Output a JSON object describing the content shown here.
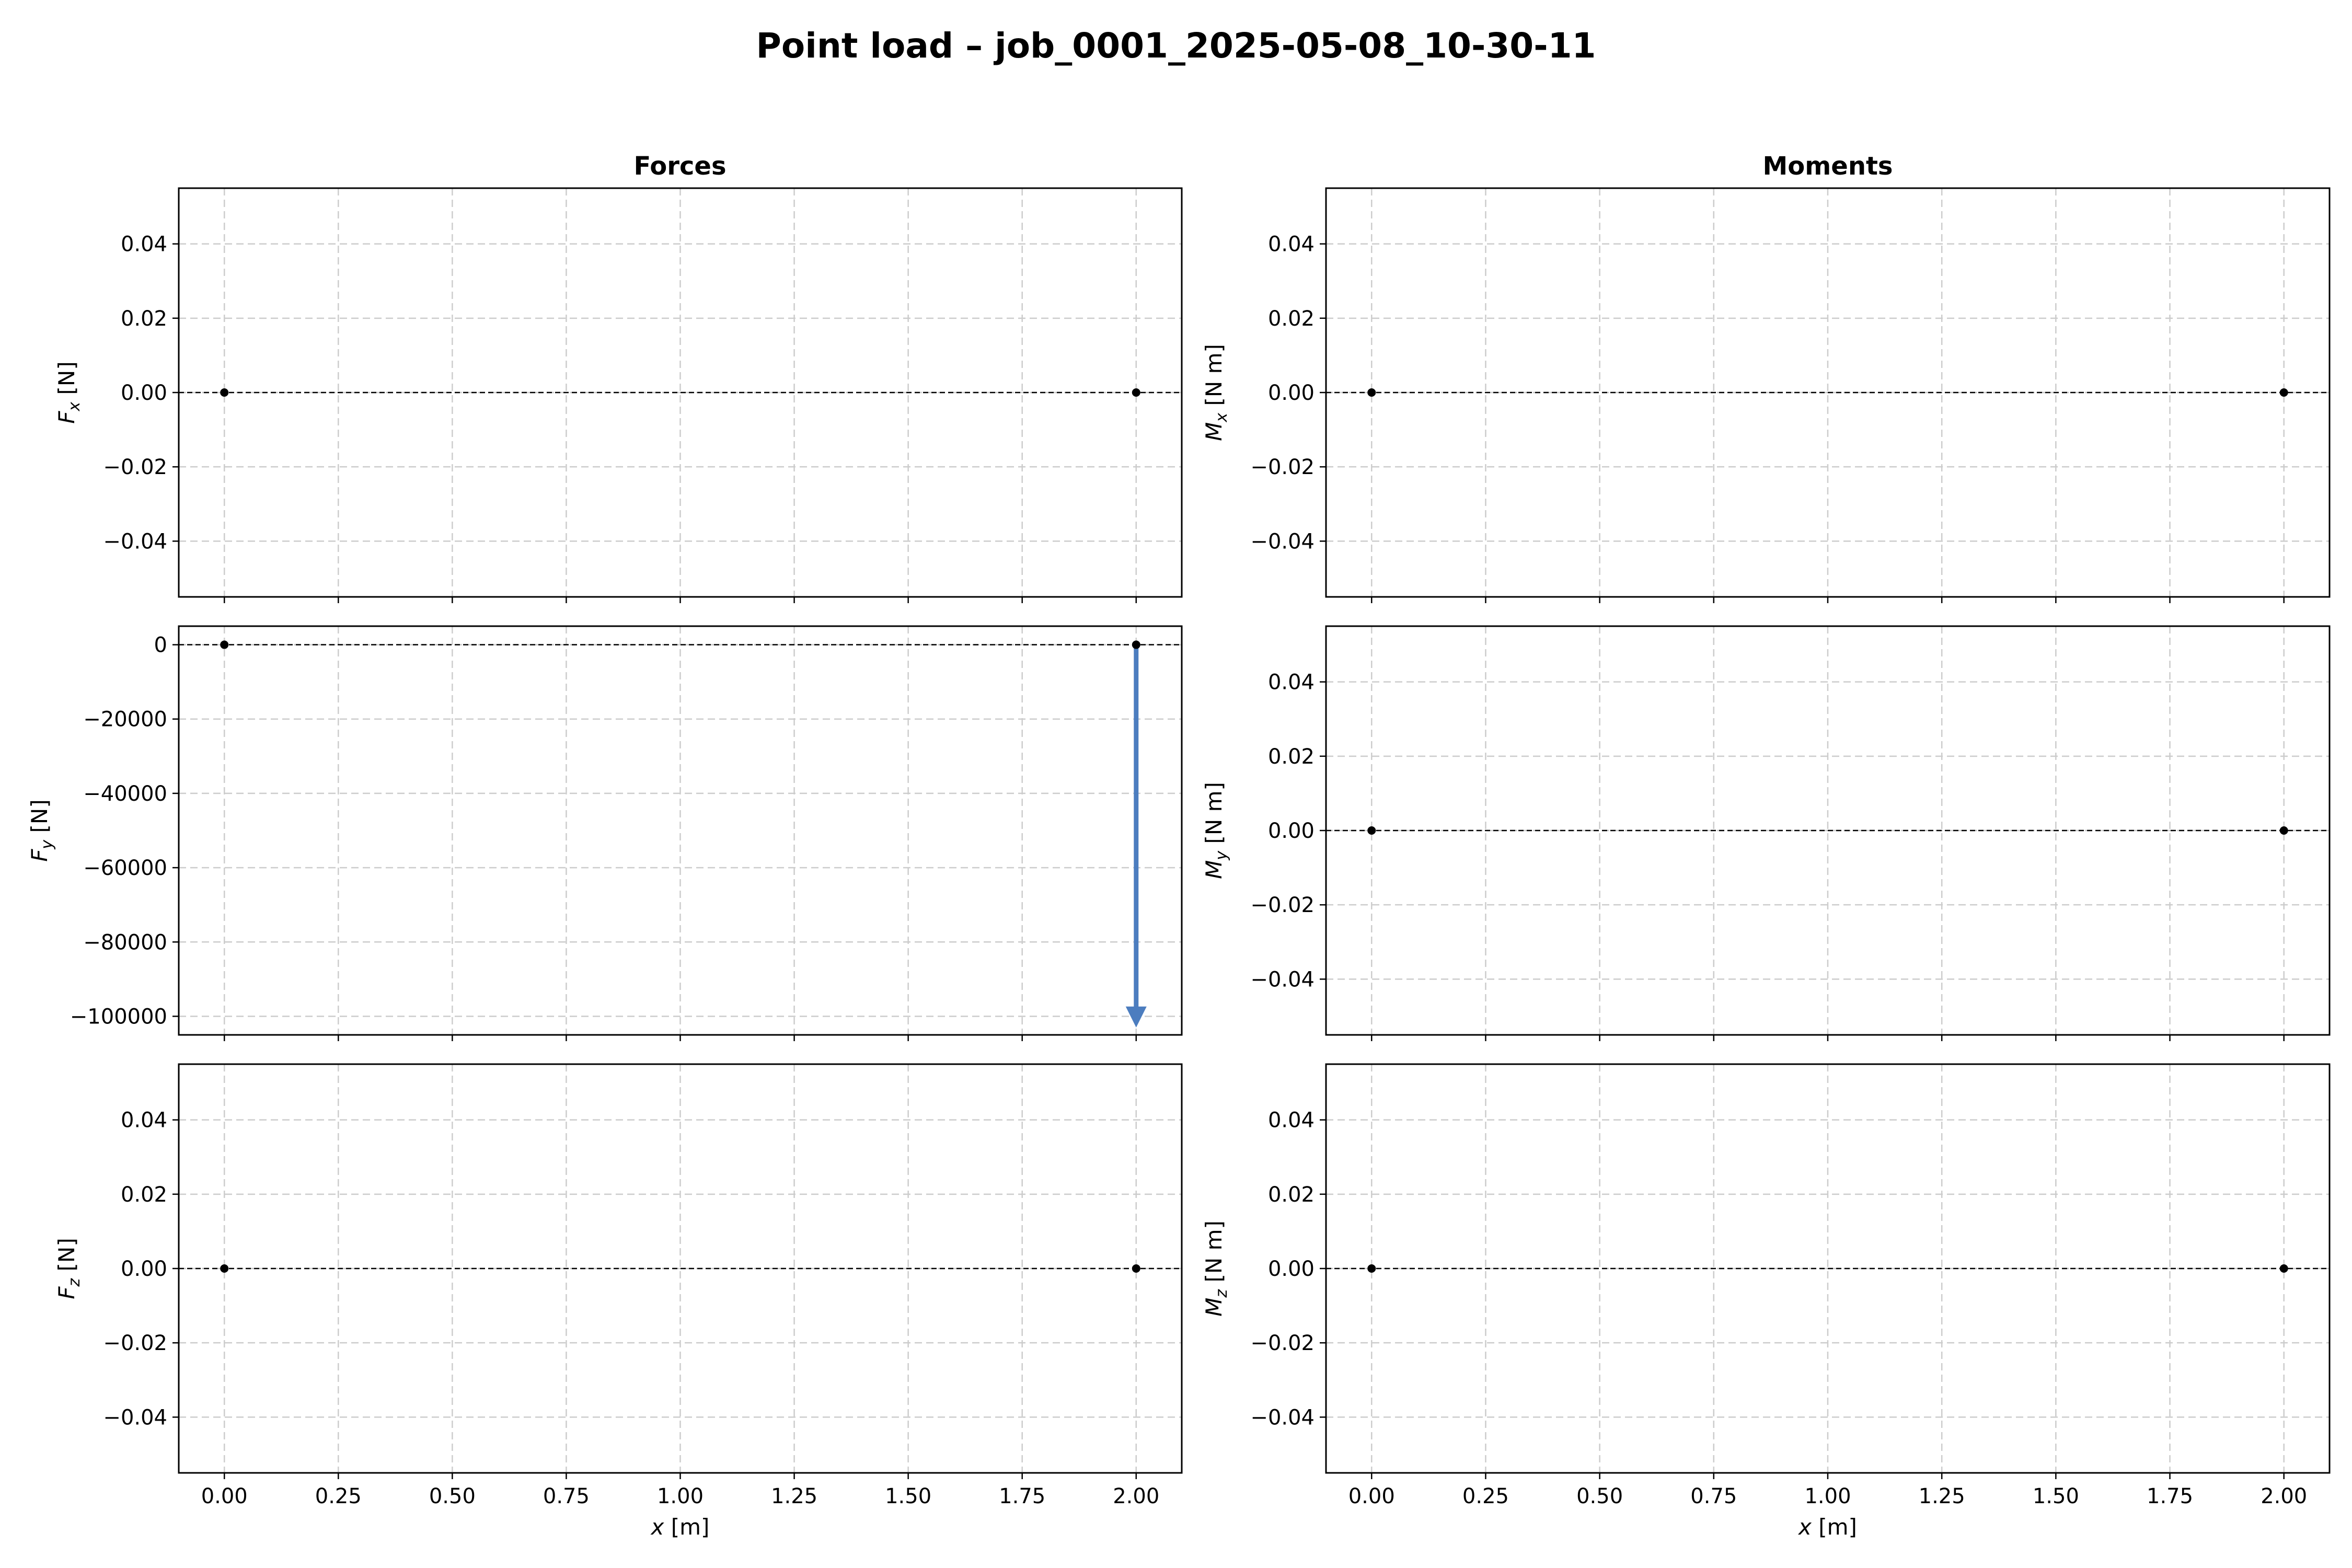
{
  "figure_title": "Point load – job_0001_2025-05-08_10-30-11",
  "colors": {
    "arrow": "#4c7dbf",
    "grid": "#cccccc",
    "zero_line": "#000000",
    "point": "#000000"
  },
  "chart_data": [
    {
      "type": "scatter",
      "column_title": "Forces",
      "ylabel": {
        "var": "F",
        "sub": "x",
        "unit": "[N]"
      },
      "xlim": [
        -0.1,
        2.1
      ],
      "ylim": [
        -0.055,
        0.055
      ],
      "xticks": [
        0,
        0.25,
        0.5,
        0.75,
        1.0,
        1.25,
        1.5,
        1.75,
        2.0
      ],
      "yticks": [
        -0.04,
        -0.02,
        0.0,
        0.02,
        0.04
      ],
      "ytick_labels": [
        "−0.04",
        "−0.02",
        "0.00",
        "0.02",
        "0.04"
      ],
      "points": [
        {
          "x": 0.0,
          "y": 0
        },
        {
          "x": 2.0,
          "y": 0
        }
      ],
      "arrows": [],
      "grid": true
    },
    {
      "type": "scatter",
      "column_title": "Moments",
      "ylabel": {
        "var": "M",
        "sub": "x",
        "unit": "[N m]"
      },
      "xlim": [
        -0.1,
        2.1
      ],
      "ylim": [
        -0.055,
        0.055
      ],
      "xticks": [
        0,
        0.25,
        0.5,
        0.75,
        1.0,
        1.25,
        1.5,
        1.75,
        2.0
      ],
      "yticks": [
        -0.04,
        -0.02,
        0.0,
        0.02,
        0.04
      ],
      "ytick_labels": [
        "−0.04",
        "−0.02",
        "0.00",
        "0.02",
        "0.04"
      ],
      "points": [
        {
          "x": 0.0,
          "y": 0
        },
        {
          "x": 2.0,
          "y": 0
        }
      ],
      "arrows": [],
      "grid": true
    },
    {
      "type": "scatter",
      "ylabel": {
        "var": "F",
        "sub": "y",
        "unit": "[N]"
      },
      "xlim": [
        -0.1,
        2.1
      ],
      "ylim": [
        -105000,
        5000
      ],
      "xticks": [
        0,
        0.25,
        0.5,
        0.75,
        1.0,
        1.25,
        1.5,
        1.75,
        2.0
      ],
      "yticks": [
        -100000,
        -80000,
        -60000,
        -40000,
        -20000,
        0
      ],
      "ytick_labels": [
        "−100000",
        "−80000",
        "−60000",
        "−40000",
        "−20000",
        "0"
      ],
      "points": [
        {
          "x": 0.0,
          "y": 0
        },
        {
          "x": 2.0,
          "y": 0
        }
      ],
      "arrows": [
        {
          "x": 2.0,
          "y_start": 0,
          "y_end": -103000
        }
      ],
      "grid": true
    },
    {
      "type": "scatter",
      "ylabel": {
        "var": "M",
        "sub": "y",
        "unit": "[N m]"
      },
      "xlim": [
        -0.1,
        2.1
      ],
      "ylim": [
        -0.055,
        0.055
      ],
      "xticks": [
        0,
        0.25,
        0.5,
        0.75,
        1.0,
        1.25,
        1.5,
        1.75,
        2.0
      ],
      "yticks": [
        -0.04,
        -0.02,
        0.0,
        0.02,
        0.04
      ],
      "ytick_labels": [
        "−0.04",
        "−0.02",
        "0.00",
        "0.02",
        "0.04"
      ],
      "points": [
        {
          "x": 0.0,
          "y": 0
        },
        {
          "x": 2.0,
          "y": 0
        }
      ],
      "arrows": [],
      "grid": true
    },
    {
      "type": "scatter",
      "ylabel": {
        "var": "F",
        "sub": "z",
        "unit": "[N]"
      },
      "xlim": [
        -0.1,
        2.1
      ],
      "ylim": [
        -0.055,
        0.055
      ],
      "xticks": [
        0,
        0.25,
        0.5,
        0.75,
        1.0,
        1.25,
        1.5,
        1.75,
        2.0
      ],
      "xtick_labels": [
        "0.00",
        "0.25",
        "0.50",
        "0.75",
        "1.00",
        "1.25",
        "1.50",
        "1.75",
        "2.00"
      ],
      "xlabel": {
        "var": "x",
        "unit": "[m]"
      },
      "yticks": [
        -0.04,
        -0.02,
        0.0,
        0.02,
        0.04
      ],
      "ytick_labels": [
        "−0.04",
        "−0.02",
        "0.00",
        "0.02",
        "0.04"
      ],
      "points": [
        {
          "x": 0.0,
          "y": 0
        },
        {
          "x": 2.0,
          "y": 0
        }
      ],
      "arrows": [],
      "grid": true
    },
    {
      "type": "scatter",
      "ylabel": {
        "var": "M",
        "sub": "z",
        "unit": "[N m]"
      },
      "xlim": [
        -0.1,
        2.1
      ],
      "ylim": [
        -0.055,
        0.055
      ],
      "xticks": [
        0,
        0.25,
        0.5,
        0.75,
        1.0,
        1.25,
        1.5,
        1.75,
        2.0
      ],
      "xtick_labels": [
        "0.00",
        "0.25",
        "0.50",
        "0.75",
        "1.00",
        "1.25",
        "1.50",
        "1.75",
        "2.00"
      ],
      "xlabel": {
        "var": "x",
        "unit": "[m]"
      },
      "yticks": [
        -0.04,
        -0.02,
        0.0,
        0.02,
        0.04
      ],
      "ytick_labels": [
        "−0.04",
        "−0.02",
        "0.00",
        "0.02",
        "0.04"
      ],
      "points": [
        {
          "x": 0.0,
          "y": 0
        },
        {
          "x": 2.0,
          "y": 0
        }
      ],
      "arrows": [],
      "grid": true
    }
  ]
}
